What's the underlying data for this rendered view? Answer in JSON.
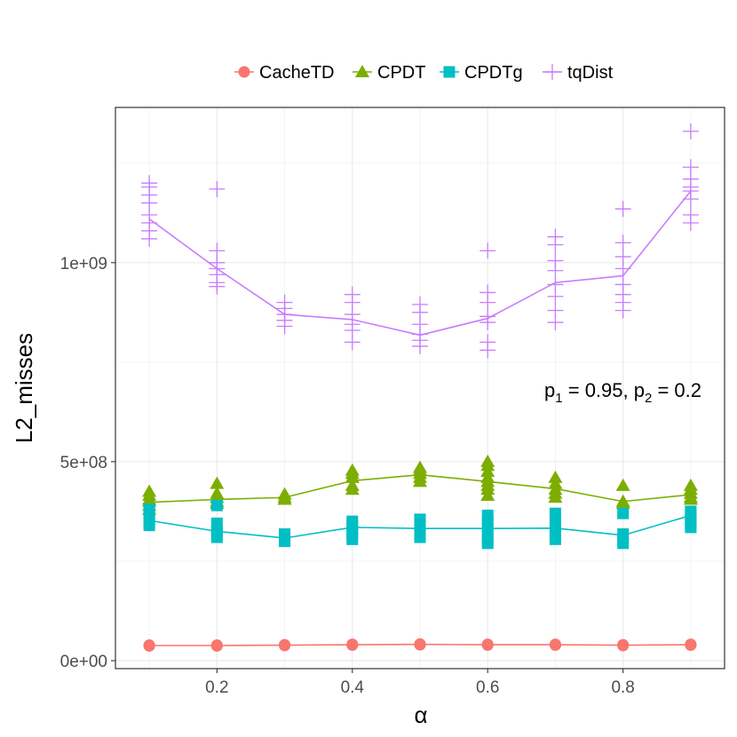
{
  "chart_data": {
    "type": "line",
    "title": "",
    "xlabel": "α",
    "ylabel": "L2_misses",
    "xlim": [
      0.05,
      0.95
    ],
    "ylim": [
      -20000000.0,
      1390000000.0
    ],
    "x_ticks": [
      0.2,
      0.4,
      0.6,
      0.8
    ],
    "x_tick_labels": [
      "0.2",
      "0.4",
      "0.6",
      "0.8"
    ],
    "y_ticks": [
      0,
      500000000,
      1000000000
    ],
    "y_tick_labels": [
      "0e+00",
      "5e+08",
      "1e+09"
    ],
    "x": [
      0.1,
      0.2,
      0.3,
      0.4,
      0.5,
      0.6,
      0.7,
      0.8,
      0.9
    ],
    "annotation": {
      "p1_label": "p",
      "p1_sub": "1",
      "p1_value": " = 0.95, ",
      "p2_label": "p",
      "p2_sub": "2",
      "p2_value": " = 0.2"
    },
    "legend_position": "top",
    "series": [
      {
        "name": "CacheTD",
        "color": "#F8766D",
        "marker": "circle",
        "values": [
          38000000,
          38000000,
          39000000,
          40000000,
          41000000,
          40000000,
          40000000,
          39000000,
          40000000
        ],
        "points": [
          [
            38000000,
            37000000,
            39000000
          ],
          [
            37000000,
            38000000,
            39000000
          ],
          [
            39000000,
            38000000,
            40000000
          ],
          [
            40000000,
            39000000,
            41000000
          ],
          [
            41000000,
            40000000,
            42000000
          ],
          [
            40000000,
            39000000,
            41000000
          ],
          [
            40000000,
            39000000,
            41000000
          ],
          [
            39000000,
            38000000,
            40000000
          ],
          [
            40000000,
            39000000,
            41000000
          ]
        ]
      },
      {
        "name": "CPDT",
        "color": "#7CAE00",
        "marker": "triangle",
        "values": [
          398000000,
          405000000,
          410000000,
          452000000,
          467000000,
          450000000,
          432000000,
          400000000,
          417000000
        ],
        "points": [
          [
            380000000,
            390000000,
            400000000,
            405000000,
            415000000,
            425000000
          ],
          [
            395000000,
            400000000,
            410000000,
            420000000,
            445000000
          ],
          [
            405000000,
            410000000,
            418000000
          ],
          [
            430000000,
            440000000,
            460000000,
            470000000,
            478000000
          ],
          [
            450000000,
            460000000,
            470000000,
            478000000,
            485000000
          ],
          [
            415000000,
            430000000,
            440000000,
            450000000,
            460000000,
            475000000,
            490000000,
            500000000
          ],
          [
            410000000,
            420000000,
            430000000,
            445000000,
            460000000
          ],
          [
            395000000,
            400000000,
            440000000
          ],
          [
            405000000,
            410000000,
            420000000,
            430000000,
            440000000
          ]
        ]
      },
      {
        "name": "CPDTg",
        "color": "#00BFC4",
        "marker": "square",
        "values": [
          352000000,
          325000000,
          308000000,
          335000000,
          332000000,
          332000000,
          333000000,
          315000000,
          365000000
        ],
        "points": [
          [
            340000000,
            350000000,
            365000000,
            380000000
          ],
          [
            310000000,
            320000000,
            330000000,
            345000000,
            390000000
          ],
          [
            300000000,
            310000000,
            318000000
          ],
          [
            305000000,
            315000000,
            325000000,
            340000000,
            350000000
          ],
          [
            310000000,
            320000000,
            330000000,
            345000000,
            355000000
          ],
          [
            295000000,
            305000000,
            320000000,
            335000000,
            350000000,
            365000000
          ],
          [
            305000000,
            320000000,
            335000000,
            350000000,
            370000000
          ],
          [
            295000000,
            305000000,
            318000000,
            370000000
          ],
          [
            335000000,
            345000000,
            355000000,
            368000000,
            375000000
          ]
        ]
      },
      {
        "name": "tqDist",
        "color": "#C77CFF",
        "marker": "plus",
        "values": [
          1110000000,
          985000000,
          870000000,
          857000000,
          818000000,
          860000000,
          950000000,
          967000000,
          1180000000
        ],
        "points": [
          [
            1060000000,
            1080000000,
            1100000000,
            1120000000,
            1150000000,
            1170000000,
            1190000000,
            1200000000
          ],
          [
            940000000,
            950000000,
            970000000,
            985000000,
            1000000000,
            1030000000,
            1185000000
          ],
          [
            840000000,
            855000000,
            870000000,
            885000000,
            900000000
          ],
          [
            800000000,
            830000000,
            845000000,
            870000000,
            900000000,
            920000000
          ],
          [
            790000000,
            805000000,
            820000000,
            845000000,
            875000000,
            895000000
          ],
          [
            780000000,
            800000000,
            850000000,
            865000000,
            900000000,
            925000000,
            1030000000
          ],
          [
            850000000,
            880000000,
            915000000,
            945000000,
            980000000,
            1005000000,
            1045000000,
            1065000000
          ],
          [
            880000000,
            900000000,
            920000000,
            945000000,
            985000000,
            1015000000,
            1050000000,
            1135000000
          ],
          [
            1100000000,
            1120000000,
            1160000000,
            1180000000,
            1190000000,
            1210000000,
            1240000000,
            1330000000
          ]
        ]
      }
    ]
  }
}
